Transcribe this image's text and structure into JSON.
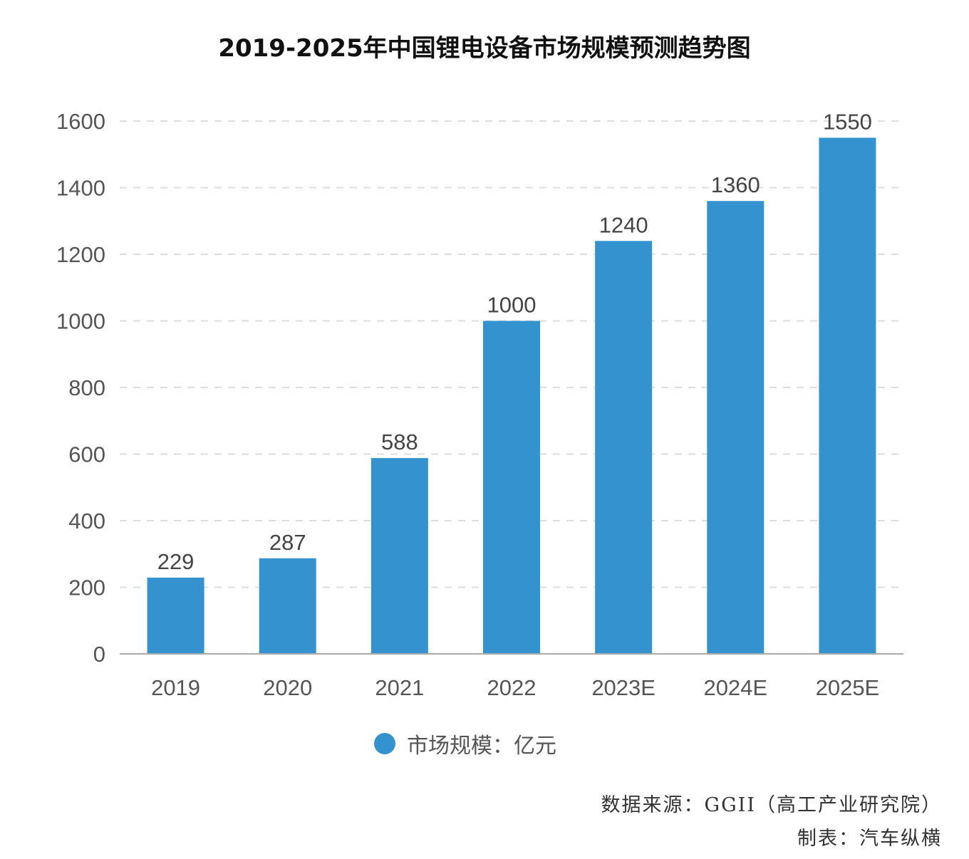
{
  "title": "2019-2025年中国锂电设备市场规模预测趋势图",
  "chart_data": {
    "type": "bar",
    "categories": [
      "2019",
      "2020",
      "2021",
      "2022",
      "2023E",
      "2024E",
      "2025E"
    ],
    "series": [
      {
        "name": "市场规模：亿元",
        "values": [
          229,
          287,
          588,
          1000,
          1240,
          1360,
          1550
        ]
      }
    ],
    "data_labels": [
      "229",
      "287",
      "588",
      "1000",
      "1240",
      "1360",
      "1550"
    ],
    "ylim": [
      0,
      1600
    ],
    "yticks": [
      "0",
      "200",
      "400",
      "600",
      "800",
      "1000",
      "1200",
      "1400",
      "1600"
    ],
    "grid": "horizontal dashed",
    "legend_position": "bottom",
    "bar_color": "#3492cf"
  },
  "legend": {
    "label": "市场规模：亿元"
  },
  "source": "数据来源：GGII（高工产业研究院）",
  "maker": "制表：汽车纵横"
}
